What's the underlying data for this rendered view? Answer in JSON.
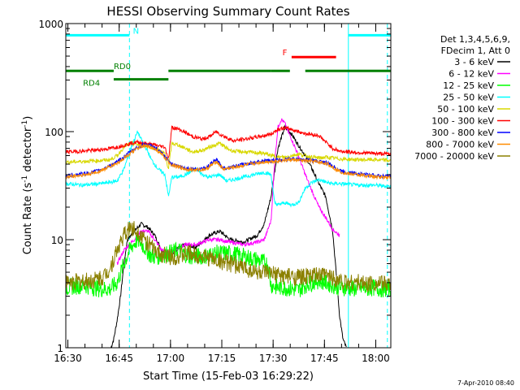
{
  "chart_data": {
    "type": "line",
    "title": "HESSI Observing Summary Count Rates",
    "xlabel": "Start Time (15-Feb-03 16:29:22)",
    "ylabel_parts": [
      "Count Rate (s",
      "-1",
      " detector",
      "-1",
      ")"
    ],
    "x_unit": "minutes after 16:29:22",
    "xlim": [
      0,
      95
    ],
    "ylim": [
      1,
      1000
    ],
    "y_scale": "log",
    "x_ticks": [
      {
        "label": "16:30",
        "value": 0.6
      },
      {
        "label": "16:45",
        "value": 15.6
      },
      {
        "label": "17:00",
        "value": 30.6
      },
      {
        "label": "17:15",
        "value": 45.6
      },
      {
        "label": "17:30",
        "value": 60.6
      },
      {
        "label": "17:45",
        "value": 75.6
      },
      {
        "label": "18:00",
        "value": 90.6
      }
    ],
    "y_ticks": [
      {
        "label": "1",
        "value": 1
      },
      {
        "label": "10",
        "value": 10
      },
      {
        "label": "100",
        "value": 100
      },
      {
        "label": "1000",
        "value": 1000
      }
    ],
    "legend_header": [
      "Det 1,3,4,5,6,9,",
      "FDecim 1, Att 0"
    ],
    "legend_position": "right",
    "series": [
      {
        "name": "3 - 6 keV",
        "color": "#000000",
        "x": [
          13.2,
          14,
          15,
          16,
          17,
          18,
          20,
          22,
          24,
          26,
          28,
          30,
          32,
          35,
          38,
          42,
          45,
          48,
          52,
          56,
          58,
          60,
          62,
          64,
          66,
          68,
          70,
          72,
          74,
          76,
          78,
          79,
          80,
          81,
          82
        ],
        "y": [
          1,
          1.2,
          1.8,
          3,
          6,
          10,
          12,
          14,
          13,
          11,
          8,
          7,
          8,
          9,
          8.5,
          11,
          12,
          10,
          9.5,
          11,
          14,
          25,
          70,
          110,
          95,
          75,
          60,
          45,
          33,
          25,
          12,
          5,
          2,
          1.2,
          1
        ]
      },
      {
        "name": "6 - 12 keV",
        "color": "#ff00ff",
        "x": [
          15,
          17,
          20,
          22,
          24,
          26,
          28,
          30,
          32,
          35,
          38,
          42,
          45,
          48,
          52,
          56,
          58,
          60,
          61,
          62,
          63,
          64,
          65,
          66,
          68,
          70,
          72,
          74,
          76,
          78,
          80
        ],
        "y": [
          6,
          8,
          10,
          12,
          12,
          10,
          8,
          7.5,
          8,
          9,
          9,
          10,
          10,
          9.5,
          9,
          9.5,
          10,
          15,
          50,
          110,
          130,
          120,
          100,
          85,
          60,
          40,
          28,
          20,
          16,
          12.5,
          11
        ]
      },
      {
        "name": "12 - 25 keV",
        "color": "#00ff00",
        "x": [
          0,
          5,
          10,
          13,
          15,
          17,
          19,
          21,
          23,
          25,
          27,
          30,
          33,
          36,
          40,
          44,
          48,
          52,
          56,
          59,
          60,
          62,
          64,
          66,
          68,
          70,
          72,
          74,
          76,
          78,
          80,
          82,
          84,
          86,
          88,
          90,
          92,
          95
        ],
        "y": [
          3.6,
          3.8,
          3.5,
          3.5,
          4,
          6,
          8.5,
          10,
          8.5,
          7,
          7,
          7.5,
          8,
          7,
          7,
          7.5,
          7.5,
          7,
          6.5,
          6,
          3.8,
          3.6,
          3.6,
          3.5,
          3.4,
          3.8,
          4,
          4.2,
          4,
          3.8,
          3.6,
          3.6,
          3.5,
          3.6,
          3.5,
          3.6,
          3.5,
          3.5
        ]
      },
      {
        "name": "25 - 50 keV",
        "color": "#00ffff",
        "x": [
          0,
          5,
          10,
          13,
          15,
          17,
          19,
          21,
          22,
          23,
          24,
          25,
          27,
          29,
          30,
          31,
          33,
          35,
          38,
          40,
          42,
          45,
          47,
          49,
          52,
          55,
          58,
          60,
          61,
          62,
          64,
          66,
          68,
          70,
          72,
          74,
          76,
          78,
          80,
          85,
          90,
          95
        ],
        "y": [
          33,
          32,
          33,
          34,
          35,
          45,
          70,
          100,
          85,
          75,
          65,
          55,
          45,
          40,
          25,
          38,
          38,
          40,
          45,
          40,
          38,
          40,
          35,
          36,
          38,
          40,
          42,
          40,
          22,
          21,
          22,
          21,
          22,
          30,
          34,
          36,
          34,
          33,
          33,
          32,
          32,
          31
        ]
      },
      {
        "name": "50 - 100 keV",
        "color": "#d8d800",
        "x": [
          0,
          5,
          10,
          13,
          15,
          17,
          19,
          21,
          23,
          25,
          27,
          29,
          30,
          31,
          33,
          35,
          37,
          40,
          42,
          44,
          45,
          47,
          49,
          52,
          55,
          58,
          60,
          62,
          64,
          66,
          68,
          70,
          72,
          74,
          76,
          78,
          80,
          85,
          90,
          95
        ],
        "y": [
          52,
          53,
          54,
          55,
          60,
          72,
          78,
          76,
          74,
          72,
          68,
          62,
          45,
          78,
          75,
          70,
          65,
          67,
          72,
          76,
          78,
          70,
          66,
          65,
          64,
          63,
          60,
          58,
          58,
          60,
          62,
          60,
          58,
          57,
          58,
          57,
          56,
          55,
          55,
          54
        ]
      },
      {
        "name": "100 - 300 keV",
        "color": "#ff0000",
        "x": [
          0,
          5,
          10,
          13,
          15,
          17,
          19,
          21,
          23,
          25,
          27,
          29,
          30,
          31,
          33,
          35,
          37,
          40,
          42,
          44,
          45,
          47,
          49,
          52,
          55,
          58,
          60,
          62,
          64,
          66,
          68,
          70,
          72,
          74,
          76,
          78,
          80,
          85,
          90,
          95
        ],
        "y": [
          65,
          66,
          68,
          70,
          72,
          75,
          78,
          80,
          78,
          76,
          74,
          72,
          55,
          110,
          105,
          98,
          90,
          85,
          90,
          100,
          95,
          88,
          82,
          85,
          88,
          92,
          95,
          105,
          108,
          105,
          100,
          96,
          94,
          92,
          80,
          70,
          66,
          64,
          63,
          62
        ]
      },
      {
        "name": "300 - 800 keV",
        "color": "#0000ff",
        "x": [
          0,
          3,
          6,
          9,
          12,
          15,
          18,
          21,
          23,
          25,
          27,
          29,
          31,
          33,
          35,
          38,
          41,
          43,
          44,
          45,
          46,
          48,
          51,
          54,
          57,
          60,
          63,
          66,
          69,
          72,
          74,
          76,
          78,
          80,
          82,
          85,
          88,
          91,
          95
        ],
        "y": [
          39,
          40,
          41,
          43,
          47,
          52,
          62,
          72,
          76,
          74,
          68,
          58,
          50,
          48,
          46,
          45,
          46,
          52,
          55,
          50,
          46,
          47,
          49,
          51,
          53,
          54,
          55,
          56,
          55,
          54,
          53,
          52,
          48,
          44,
          42,
          41,
          40,
          39,
          39
        ]
      },
      {
        "name": "800 - 7000 keV",
        "color": "#ff8c00",
        "x": [
          0,
          3,
          6,
          9,
          12,
          15,
          18,
          21,
          23,
          25,
          27,
          29,
          31,
          33,
          35,
          38,
          41,
          43,
          44,
          45,
          46,
          48,
          51,
          54,
          57,
          60,
          63,
          66,
          69,
          72,
          74,
          76,
          78,
          80,
          82,
          85,
          88,
          91,
          95
        ],
        "y": [
          38,
          39,
          40,
          42,
          46,
          51,
          60,
          70,
          74,
          72,
          66,
          57,
          49,
          47,
          45,
          44,
          45,
          50,
          53,
          49,
          45,
          46,
          48,
          50,
          52,
          53,
          54,
          55,
          54,
          53,
          52,
          51,
          47,
          43,
          41,
          40,
          39,
          38,
          38
        ]
      },
      {
        "name": "7000 - 20000 keV",
        "color": "#8b8000",
        "x": [
          0,
          4,
          8,
          11,
          13,
          15,
          17,
          19,
          21,
          23,
          25,
          27,
          30,
          33,
          36,
          40,
          44,
          48,
          52,
          56,
          60,
          64,
          68,
          72,
          76,
          78,
          80,
          82,
          84,
          86,
          88,
          90,
          92,
          95
        ],
        "y": [
          4,
          4.1,
          4.2,
          4.5,
          5.5,
          8,
          11,
          13,
          12,
          10,
          8.5,
          7.5,
          7,
          7,
          7.5,
          7,
          6.5,
          6,
          5.5,
          5,
          4.8,
          4.6,
          4.5,
          4.6,
          4.7,
          4.5,
          4.2,
          4,
          4.1,
          4,
          3.9,
          4,
          3.9,
          4
        ]
      }
    ],
    "vertical_lines": [
      {
        "x": 0.0,
        "style": "solid"
      },
      {
        "x": 18.6,
        "style": "dashed"
      },
      {
        "x": 82.6,
        "style": "solid"
      },
      {
        "x": 94.0,
        "style": "dashed"
      }
    ],
    "state_bars": [
      {
        "label": "N",
        "color": "#00ffff",
        "y": 780,
        "segments": [
          [
            0,
            18.6
          ],
          [
            82.6,
            95
          ]
        ],
        "label_at": 20.5
      },
      {
        "label": "F",
        "color": "#ff0000",
        "y": 490,
        "segments": [
          [
            66,
            79
          ]
        ],
        "label_at": 64
      },
      {
        "label": "RD0",
        "color": "#008000",
        "y": 365,
        "segments": [
          [
            0,
            14
          ],
          [
            30,
            60
          ],
          [
            60,
            65.5
          ],
          [
            70,
            95
          ]
        ],
        "label_at": 16.5
      },
      {
        "label": "RD4",
        "color": "#008000",
        "y": 305,
        "segments": [
          [
            14,
            30
          ]
        ],
        "label_at": 7.5
      }
    ]
  },
  "footer_stamp": "7-Apr-2010 08:40"
}
